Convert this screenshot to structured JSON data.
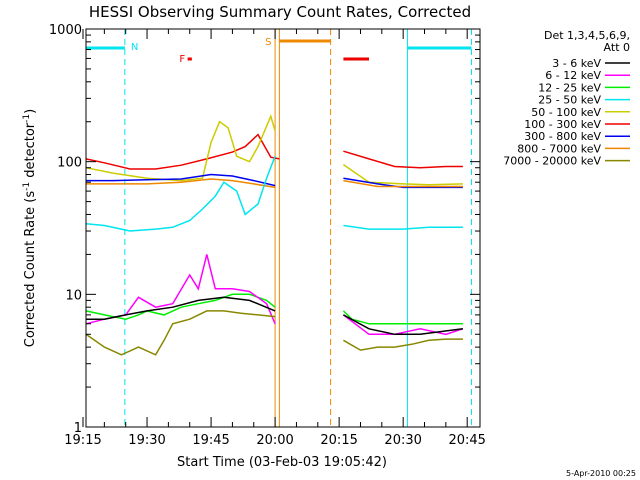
{
  "chart_data": {
    "type": "line",
    "title": "HESSI Observing Summary Count Rates, Corrected",
    "xlabel": "Start Time (03-Feb-03 19:05:42)",
    "ylabel": "Corrected Count Rate (s",
    "ylabel_sup1": "-1",
    "ylabel_mid": " detector",
    "ylabel_sup2": "-1",
    "ylabel_end": ")",
    "yscale": "log",
    "ylim": [
      1,
      1000
    ],
    "xlim_minutes": [
      1155.7,
      1248
    ],
    "xticks": [
      {
        "t": 1155,
        "label": "19:15"
      },
      {
        "t": 1170,
        "label": "19:30"
      },
      {
        "t": 1185,
        "label": "19:45"
      },
      {
        "t": 1200,
        "label": "20:00"
      },
      {
        "t": 1215,
        "label": "20:15"
      },
      {
        "t": 1230,
        "label": "20:30"
      },
      {
        "t": 1245,
        "label": "20:45"
      }
    ],
    "yticks": [
      {
        "v": 1,
        "label": "1"
      },
      {
        "v": 10,
        "label": "10"
      },
      {
        "v": 100,
        "label": "100"
      },
      {
        "v": 1000,
        "label": "1000"
      }
    ],
    "legend_title_1": "Det 1,3,4,5,6,9,",
    "legend_title_2": "Att 0",
    "legend": [
      {
        "label": "3 - 6 keV",
        "color": "#000000"
      },
      {
        "label": "6 - 12 keV",
        "color": "#ff00ff"
      },
      {
        "label": "12 - 25 keV",
        "color": "#00ee00"
      },
      {
        "label": "25 - 50 keV",
        "color": "#00e5ee"
      },
      {
        "label": "50 - 100 keV",
        "color": "#cccc00"
      },
      {
        "label": "100 - 300 keV",
        "color": "#ee0000"
      },
      {
        "label": "300 - 800 keV",
        "color": "#0000ee"
      },
      {
        "label": "800 - 7000 keV",
        "color": "#ee8800"
      },
      {
        "label": "7000 - 20000 keV",
        "color": "#888800"
      }
    ],
    "series": [
      {
        "name": "100 - 300 keV",
        "color": "#ee0000",
        "points": [
          [
            1155.7,
            105
          ],
          [
            1160,
            98
          ],
          [
            1166,
            88
          ],
          [
            1172,
            88
          ],
          [
            1178,
            94
          ],
          [
            1184,
            105
          ],
          [
            1190,
            118
          ],
          [
            1193,
            130
          ],
          [
            1196,
            160
          ],
          [
            1199,
            108
          ],
          [
            1201,
            105
          ],
          [
            1212,
            null
          ],
          [
            1216,
            120
          ],
          [
            1222,
            105
          ],
          [
            1228,
            92
          ],
          [
            1234,
            90
          ],
          [
            1240,
            92
          ],
          [
            1244,
            92
          ]
        ]
      },
      {
        "name": "50 - 100 keV",
        "color": "#cccc00",
        "points": [
          [
            1155.7,
            90
          ],
          [
            1162,
            82
          ],
          [
            1170,
            75
          ],
          [
            1178,
            72
          ],
          [
            1183,
            75
          ],
          [
            1185,
            140
          ],
          [
            1187,
            200
          ],
          [
            1189,
            180
          ],
          [
            1191,
            110
          ],
          [
            1194,
            100
          ],
          [
            1196,
            130
          ],
          [
            1199,
            220
          ],
          [
            1200,
            170
          ],
          [
            1212,
            null
          ],
          [
            1216,
            95
          ],
          [
            1222,
            70
          ],
          [
            1230,
            68
          ],
          [
            1236,
            67
          ],
          [
            1244,
            68
          ]
        ]
      },
      {
        "name": "300 - 800 keV",
        "color": "#0000ee",
        "points": [
          [
            1155.7,
            72
          ],
          [
            1162,
            72
          ],
          [
            1170,
            73
          ],
          [
            1178,
            74
          ],
          [
            1185,
            80
          ],
          [
            1190,
            78
          ],
          [
            1195,
            72
          ],
          [
            1200,
            66
          ],
          [
            1212,
            null
          ],
          [
            1216,
            75
          ],
          [
            1224,
            68
          ],
          [
            1230,
            64
          ],
          [
            1236,
            64
          ],
          [
            1244,
            64
          ]
        ]
      },
      {
        "name": "800 - 7000 keV",
        "color": "#ee8800",
        "points": [
          [
            1155.7,
            68
          ],
          [
            1162,
            68
          ],
          [
            1170,
            68
          ],
          [
            1178,
            70
          ],
          [
            1185,
            74
          ],
          [
            1190,
            72
          ],
          [
            1195,
            68
          ],
          [
            1200,
            64
          ],
          [
            1212,
            null
          ],
          [
            1216,
            72
          ],
          [
            1224,
            65
          ],
          [
            1230,
            65
          ],
          [
            1236,
            65
          ],
          [
            1244,
            65
          ]
        ]
      },
      {
        "name": "25 - 50 keV",
        "color": "#00e5ee",
        "points": [
          [
            1155.7,
            34
          ],
          [
            1160,
            33
          ],
          [
            1166,
            30
          ],
          [
            1172,
            31
          ],
          [
            1176,
            32
          ],
          [
            1180,
            36
          ],
          [
            1183,
            44
          ],
          [
            1186,
            55
          ],
          [
            1188,
            70
          ],
          [
            1191,
            60
          ],
          [
            1193,
            40
          ],
          [
            1196,
            48
          ],
          [
            1198,
            75
          ],
          [
            1200,
            110
          ],
          [
            1212,
            null
          ],
          [
            1216,
            33
          ],
          [
            1222,
            31
          ],
          [
            1230,
            31
          ],
          [
            1236,
            32
          ],
          [
            1244,
            32
          ]
        ]
      },
      {
        "name": "12 - 25 keV",
        "color": "#00ee00",
        "points": [
          [
            1155.7,
            7.5
          ],
          [
            1160,
            7
          ],
          [
            1165,
            6.5
          ],
          [
            1168,
            7
          ],
          [
            1170,
            7.5
          ],
          [
            1174,
            7
          ],
          [
            1178,
            8
          ],
          [
            1182,
            8.5
          ],
          [
            1186,
            9
          ],
          [
            1190,
            10
          ],
          [
            1194,
            10
          ],
          [
            1198,
            9
          ],
          [
            1200,
            8
          ],
          [
            1212,
            null
          ],
          [
            1216,
            7.5
          ],
          [
            1218,
            6.5
          ],
          [
            1222,
            6
          ],
          [
            1228,
            6
          ],
          [
            1234,
            6
          ],
          [
            1240,
            6
          ],
          [
            1244,
            6
          ]
        ]
      },
      {
        "name": "6 - 12 keV",
        "color": "#ff00ff",
        "points": [
          [
            1155.7,
            6
          ],
          [
            1160,
            6.5
          ],
          [
            1165,
            7
          ],
          [
            1168,
            9.5
          ],
          [
            1172,
            8
          ],
          [
            1176,
            8.5
          ],
          [
            1180,
            14
          ],
          [
            1182,
            11
          ],
          [
            1184,
            20
          ],
          [
            1186,
            11
          ],
          [
            1190,
            11
          ],
          [
            1194,
            10.5
          ],
          [
            1198,
            8.5
          ],
          [
            1200,
            6
          ],
          [
            1212,
            null
          ],
          [
            1216,
            7
          ],
          [
            1222,
            5
          ],
          [
            1228,
            5
          ],
          [
            1234,
            5.5
          ],
          [
            1240,
            5
          ],
          [
            1244,
            5.5
          ]
        ]
      },
      {
        "name": "3 - 6 keV",
        "color": "#000000",
        "points": [
          [
            1155.7,
            6.5
          ],
          [
            1160,
            6.5
          ],
          [
            1165,
            7
          ],
          [
            1170,
            7.5
          ],
          [
            1176,
            8
          ],
          [
            1182,
            9
          ],
          [
            1188,
            9.5
          ],
          [
            1194,
            9
          ],
          [
            1200,
            7.5
          ],
          [
            1212,
            null
          ],
          [
            1216,
            7
          ],
          [
            1222,
            5.5
          ],
          [
            1228,
            5
          ],
          [
            1234,
            5
          ],
          [
            1244,
            5.5
          ]
        ]
      },
      {
        "name": "7000 - 20000 keV",
        "color": "#888800",
        "points": [
          [
            1155.7,
            5
          ],
          [
            1160,
            4
          ],
          [
            1164,
            3.5
          ],
          [
            1168,
            4
          ],
          [
            1172,
            3.5
          ],
          [
            1174,
            4.5
          ],
          [
            1176,
            6
          ],
          [
            1180,
            6.5
          ],
          [
            1184,
            7.5
          ],
          [
            1188,
            7.5
          ],
          [
            1192,
            7.2
          ],
          [
            1196,
            7
          ],
          [
            1200,
            6.8
          ],
          [
            1212,
            null
          ],
          [
            1216,
            4.5
          ],
          [
            1220,
            3.8
          ],
          [
            1224,
            4
          ],
          [
            1228,
            4
          ],
          [
            1232,
            4.2
          ],
          [
            1236,
            4.5
          ],
          [
            1240,
            4.6
          ],
          [
            1244,
            4.6
          ]
        ]
      }
    ],
    "annotations": {
      "N_marker": {
        "label": "N",
        "t": 1164.8,
        "color": "#00e5ee"
      },
      "F_marker": {
        "label": "F",
        "t": 1178.5,
        "color": "#ee0000"
      },
      "S_marker": {
        "label": "S",
        "t": 1200.0,
        "color": "#ee8800"
      },
      "night_bars": [
        [
          1155.7,
          1164.8
        ],
        [
          1231,
          1246
        ]
      ],
      "saa_bar": [
        1201,
        1213
      ],
      "flare_bar": [
        1216,
        1222
      ],
      "flare_small": [
        1179.5,
        1180.5
      ]
    }
  },
  "timestamp": "5-Apr-2010 00:25"
}
